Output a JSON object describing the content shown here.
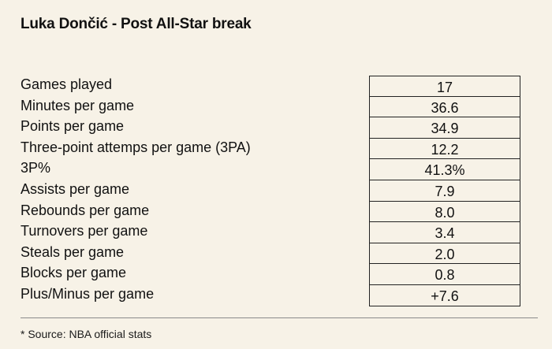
{
  "title": "Luka Dončić - Post All-Star break",
  "stats": [
    {
      "label": "Games played",
      "value": "17"
    },
    {
      "label": "Minutes per game",
      "value": "36.6"
    },
    {
      "label": "Points per game",
      "value": "34.9"
    },
    {
      "label": "Three-point attemps per game (3PA)",
      "value": "12.2"
    },
    {
      "label": "3P%",
      "value": "41.3%"
    },
    {
      "label": "Assists per game",
      "value": "7.9"
    },
    {
      "label": "Rebounds per game",
      "value": "8.0"
    },
    {
      "label": "Turnovers per game",
      "value": "3.4"
    },
    {
      "label": "Steals per game",
      "value": "2.0"
    },
    {
      "label": "Blocks per game",
      "value": "0.8"
    },
    {
      "label": "Plus/Minus per game",
      "value": "+7.6"
    }
  ],
  "source": "* Source: NBA official stats"
}
